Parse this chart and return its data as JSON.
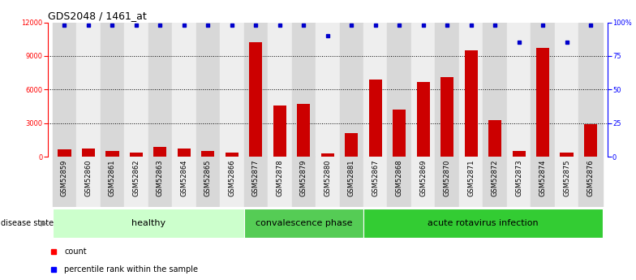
{
  "title": "GDS2048 / 1461_at",
  "samples": [
    "GSM52859",
    "GSM52860",
    "GSM52861",
    "GSM52862",
    "GSM52863",
    "GSM52864",
    "GSM52865",
    "GSM52866",
    "GSM52877",
    "GSM52878",
    "GSM52879",
    "GSM52880",
    "GSM52881",
    "GSM52867",
    "GSM52868",
    "GSM52869",
    "GSM52870",
    "GSM52871",
    "GSM52872",
    "GSM52873",
    "GSM52874",
    "GSM52875",
    "GSM52876"
  ],
  "counts": [
    700,
    750,
    550,
    400,
    900,
    750,
    500,
    350,
    10200,
    4600,
    4700,
    300,
    2100,
    6900,
    4200,
    6700,
    7100,
    9500,
    3300,
    500,
    9700,
    350,
    2900
  ],
  "percentile_rank": [
    98,
    98,
    98,
    98,
    98,
    98,
    98,
    98,
    98,
    98,
    98,
    90,
    98,
    98,
    98,
    98,
    98,
    98,
    98,
    85,
    98,
    85,
    98
  ],
  "groups": [
    {
      "label": "healthy",
      "start": 0,
      "end": 8,
      "color": "#ccffcc"
    },
    {
      "label": "convalescence phase",
      "start": 8,
      "end": 13,
      "color": "#55cc55"
    },
    {
      "label": "acute rotavirus infection",
      "start": 13,
      "end": 23,
      "color": "#33cc33"
    }
  ],
  "ylim_left": [
    0,
    12000
  ],
  "ylim_right": [
    0,
    100
  ],
  "yticks_left": [
    0,
    3000,
    6000,
    9000,
    12000
  ],
  "yticks_right": [
    0,
    25,
    50,
    75,
    100
  ],
  "bar_color": "#cc0000",
  "dot_color": "#0000cc",
  "col_bg_even": "#d8d8d8",
  "col_bg_odd": "#eeeeee",
  "background_color": "#ffffff",
  "disease_state_label": "disease state",
  "legend_count_label": "count",
  "legend_percentile_label": "percentile rank within the sample",
  "grid_lines": [
    3000,
    6000,
    9000
  ],
  "title_fontsize": 9,
  "tick_fontsize": 6,
  "label_fontsize": 8
}
